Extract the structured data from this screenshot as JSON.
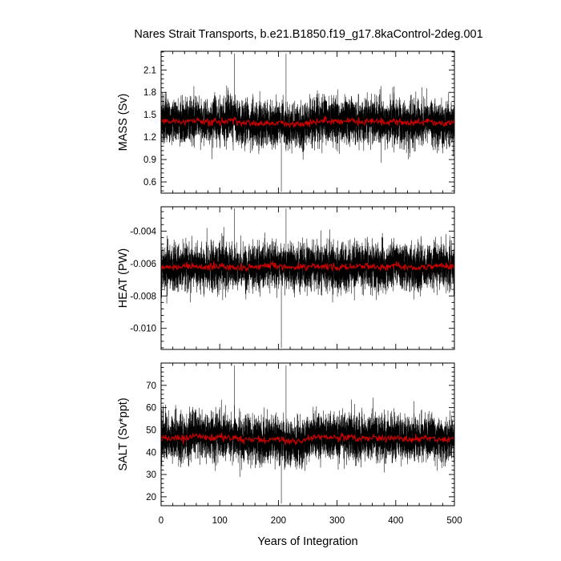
{
  "figure": {
    "title": "Nares Strait Transports, b.e21.B1850.f19_g17.8kaControl-2deg.001",
    "xlabel": "Years of Integration",
    "colors": {
      "background": "#ffffff",
      "monthly": "#000000",
      "annual": "#cc0000",
      "axes": "#000000"
    }
  },
  "chart_data": [
    {
      "type": "line",
      "panel": "mass",
      "ylabel": "MASS (Sv)",
      "ylim": [
        0.45,
        2.35
      ],
      "yticks": [
        0.6,
        0.9,
        1.2,
        1.5,
        1.8,
        2.1
      ],
      "ytick_labels": [
        "0.6",
        "0.9",
        "1.2",
        "1.5",
        "1.8",
        "2.1"
      ],
      "xlim": [
        0,
        500
      ],
      "xticks": [
        0,
        100,
        200,
        300,
        400,
        500
      ],
      "xtick_labels": [
        "0",
        "100",
        "200",
        "300",
        "400",
        "500"
      ],
      "grid": false,
      "series": [
        {
          "kind": "monthly",
          "color": "#000000",
          "mean": 1.4,
          "spread": 0.28,
          "min": 0.47,
          "max": 2.32,
          "annual_anomaly": [
            [
              0,
              0.02
            ],
            [
              20,
              0.05
            ],
            [
              40,
              0.0
            ],
            [
              60,
              0.06
            ],
            [
              80,
              0.01
            ],
            [
              100,
              0.02
            ],
            [
              120,
              0.04
            ],
            [
              140,
              -0.02
            ],
            [
              160,
              0.0
            ],
            [
              180,
              -0.04
            ],
            [
              200,
              -0.02
            ],
            [
              220,
              -0.05
            ],
            [
              240,
              -0.07
            ],
            [
              260,
              0.03
            ],
            [
              280,
              0.06
            ],
            [
              300,
              0.02
            ],
            [
              320,
              0.04
            ],
            [
              340,
              0.01
            ],
            [
              360,
              0.03
            ],
            [
              380,
              0.0
            ],
            [
              400,
              0.02
            ],
            [
              420,
              -0.02
            ],
            [
              440,
              0.0
            ],
            [
              460,
              0.01
            ],
            [
              480,
              -0.03
            ],
            [
              500,
              0.0
            ]
          ]
        },
        {
          "kind": "annual",
          "color": "#cc0000",
          "mean": 1.4,
          "spread": 0.045
        }
      ]
    },
    {
      "type": "line",
      "panel": "heat",
      "ylabel": "HEAT (PW)",
      "ylim": [
        -0.0113,
        -0.0025
      ],
      "yticks": [
        -0.01,
        -0.008,
        -0.006,
        -0.004
      ],
      "ytick_labels": [
        "-0.010",
        "-0.008",
        "-0.006",
        "-0.004"
      ],
      "xlim": [
        0,
        500
      ],
      "xticks": [
        0,
        100,
        200,
        300,
        400,
        500
      ],
      "xtick_labels": [
        "0",
        "100",
        "200",
        "300",
        "400",
        "500"
      ],
      "grid": false,
      "series": [
        {
          "kind": "monthly",
          "color": "#000000",
          "mean": -0.0062,
          "spread": 0.0013,
          "min": -0.0112,
          "max": -0.0026,
          "annual_anomaly": [
            [
              0,
              -0.0001
            ],
            [
              20,
              0.0
            ],
            [
              40,
              0.0001
            ],
            [
              60,
              -0.0001
            ],
            [
              80,
              0.0
            ],
            [
              100,
              0.0001
            ],
            [
              120,
              0.0
            ],
            [
              140,
              -0.0001
            ],
            [
              160,
              0.0
            ],
            [
              180,
              0.0001
            ],
            [
              200,
              0.0
            ],
            [
              220,
              -0.0001
            ],
            [
              240,
              0.0
            ],
            [
              260,
              0.0001
            ],
            [
              280,
              0.0
            ],
            [
              300,
              0.0
            ],
            [
              320,
              -0.0001
            ],
            [
              340,
              0.0001
            ],
            [
              360,
              0.0
            ],
            [
              380,
              0.0
            ],
            [
              400,
              0.0001
            ],
            [
              420,
              0.0
            ],
            [
              440,
              -0.0001
            ],
            [
              460,
              0.0
            ],
            [
              480,
              0.0001
            ],
            [
              500,
              0.0
            ]
          ]
        },
        {
          "kind": "annual",
          "color": "#cc0000",
          "mean": -0.0062,
          "spread": 0.00022
        }
      ]
    },
    {
      "type": "line",
      "panel": "salt",
      "ylabel": "SALT (Sv*ppt)",
      "ylim": [
        16,
        80
      ],
      "yticks": [
        20,
        30,
        40,
        50,
        60,
        70
      ],
      "ytick_labels": [
        "20",
        "30",
        "40",
        "50",
        "60",
        "70"
      ],
      "xlim": [
        0,
        500
      ],
      "xticks": [
        0,
        100,
        200,
        300,
        400,
        500
      ],
      "xtick_labels": [
        "0",
        "100",
        "200",
        "300",
        "400",
        "500"
      ],
      "grid": false,
      "series": [
        {
          "kind": "monthly",
          "color": "#000000",
          "mean": 46,
          "spread": 9.5,
          "min": 17,
          "max": 79,
          "annual_anomaly": [
            [
              0,
              0.5
            ],
            [
              20,
              1.5
            ],
            [
              40,
              0.0
            ],
            [
              60,
              2.0
            ],
            [
              80,
              0.5
            ],
            [
              100,
              1.0
            ],
            [
              120,
              1.2
            ],
            [
              140,
              -0.6
            ],
            [
              160,
              0.0
            ],
            [
              180,
              -1.4
            ],
            [
              200,
              -0.8
            ],
            [
              220,
              -1.6
            ],
            [
              240,
              -2.2
            ],
            [
              260,
              1.0
            ],
            [
              280,
              1.8
            ],
            [
              300,
              0.6
            ],
            [
              320,
              1.4
            ],
            [
              340,
              0.4
            ],
            [
              360,
              1.0
            ],
            [
              380,
              0.0
            ],
            [
              400,
              0.8
            ],
            [
              420,
              -0.6
            ],
            [
              440,
              0.0
            ],
            [
              460,
              0.4
            ],
            [
              480,
              -1.0
            ],
            [
              500,
              0.0
            ]
          ]
        },
        {
          "kind": "annual",
          "color": "#cc0000",
          "mean": 46,
          "spread": 1.5
        }
      ]
    }
  ]
}
